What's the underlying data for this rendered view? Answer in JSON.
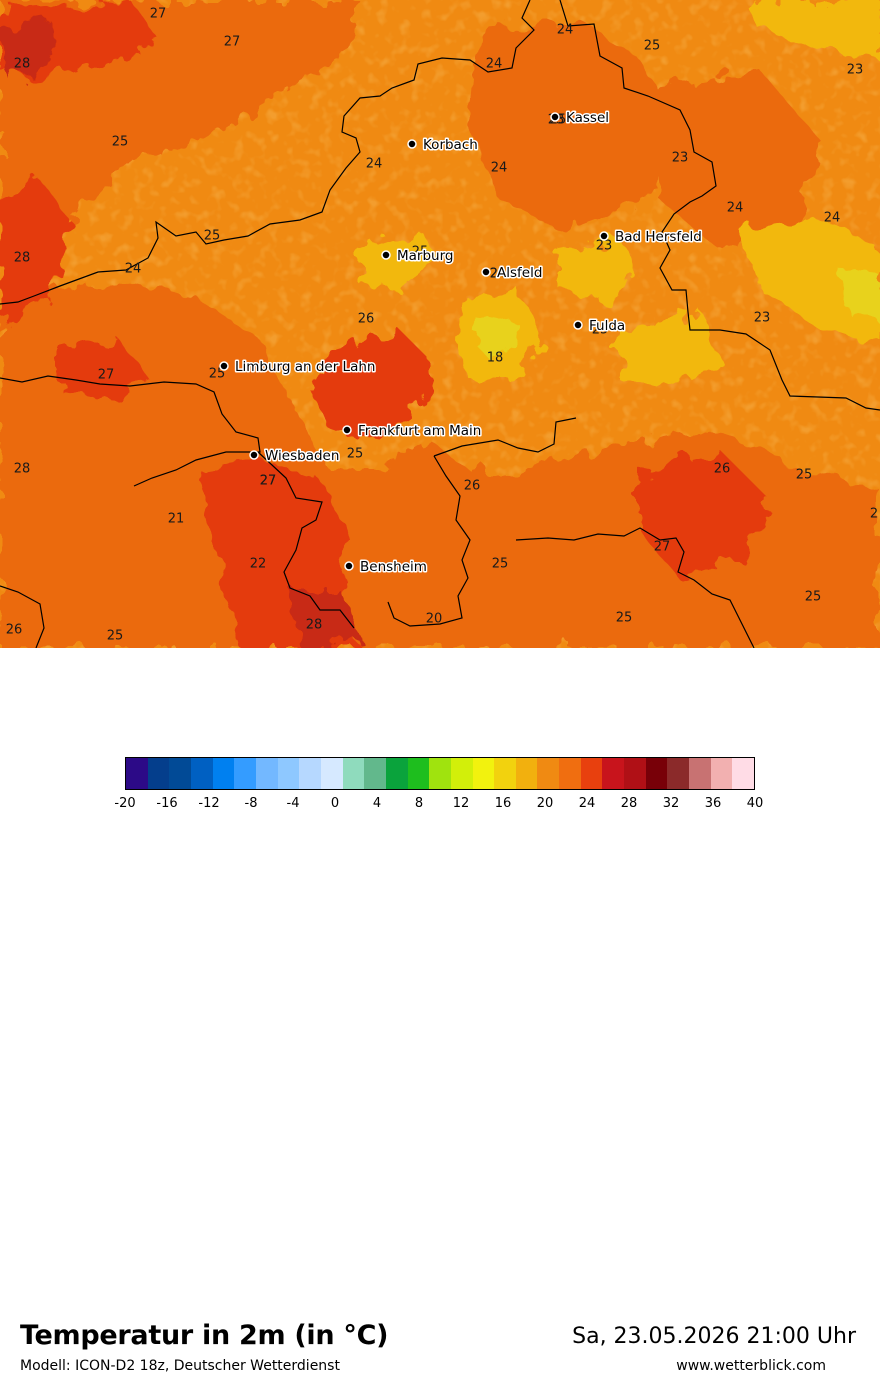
{
  "map": {
    "cities": [
      {
        "name": "Kassel"
      },
      {
        "name": "Korbach"
      },
      {
        "name": "Bad Hersfeld"
      },
      {
        "name": "Marburg"
      },
      {
        "name": "Alsfeld"
      },
      {
        "name": "Fulda"
      },
      {
        "name": "Limburg an der Lahn"
      },
      {
        "name": "Frankfurt am Main"
      },
      {
        "name": "Wiesbaden"
      },
      {
        "name": "Bensheim"
      }
    ],
    "values": [
      "27",
      "27",
      "28",
      "24",
      "24",
      "25",
      "23",
      "25",
      "25",
      "24",
      "24",
      "23",
      "24",
      "24",
      "28",
      "25",
      "24",
      "25",
      "23",
      "24",
      "23",
      "24",
      "25",
      "25",
      "26",
      "18",
      "23",
      "27",
      "25",
      "28",
      "21",
      "27",
      "26",
      "26",
      "25",
      "27",
      "2",
      "27",
      "22",
      "25",
      "25",
      "20",
      "26",
      "25",
      "28",
      "25"
    ],
    "colors": {
      "warm": "#f08a12",
      "warmer": "#eb6a10",
      "hot": "#e43a0e",
      "very_hot": "#c82a12",
      "mild": "#f2b80e",
      "cool": "#e8d21a"
    }
  },
  "footer": {
    "title": "Temperatur in 2m (in °C)",
    "model": "Modell: ICON-D2 18z, Deutscher Wetterdienst",
    "datetime": "Sa, 23.05.2026 21:00 Uhr",
    "website": "www.wetterblick.com"
  },
  "legend": {
    "colors": [
      "#2c0a87",
      "#043e8c",
      "#014a96",
      "#0060c2",
      "#0080f0",
      "#349cff",
      "#73b8ff",
      "#8ec8ff",
      "#b6d8ff",
      "#d6e9ff",
      "#8fdbbd",
      "#62b88c",
      "#0aa33c",
      "#1ebe1e",
      "#a0e30e",
      "#d2ef0a",
      "#f2f20e",
      "#f2d20e",
      "#f2b00e",
      "#f08a12",
      "#f06e10",
      "#e8400e",
      "#c8141c",
      "#b01016",
      "#780008",
      "#8b2a2a",
      "#c87272",
      "#f2b0b0",
      "#ffdce6"
    ],
    "ticks": [
      "-20",
      "-16",
      "-12",
      "-8",
      "-4",
      "0",
      "4",
      "8",
      "12",
      "16",
      "20",
      "24",
      "28",
      "32",
      "36",
      "40"
    ]
  }
}
